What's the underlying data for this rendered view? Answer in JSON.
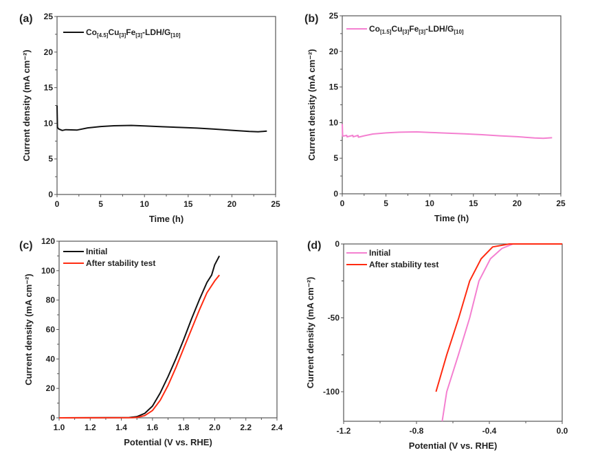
{
  "chart_data": [
    {
      "panel_label": "(a)",
      "type": "line",
      "xlabel": "Time (h)",
      "ylabel": "Current density (mA cm⁻²)",
      "xlim": [
        0,
        25
      ],
      "ylim": [
        0,
        25
      ],
      "xticks": [
        0,
        5,
        10,
        15,
        20,
        25
      ],
      "yticks": [
        0,
        5,
        10,
        15,
        20,
        25
      ],
      "xtick_labels": [
        "0",
        "5",
        "10",
        "15",
        "20",
        "25"
      ],
      "ytick_labels": [
        "0",
        "5",
        "10",
        "15",
        "20",
        "25"
      ],
      "grid": false,
      "legend_position": "top-left",
      "series": [
        {
          "name": "Co[4.5]Cu[3]Fe[3]-LDH/G[10]",
          "color": "#111111",
          "x": [
            0,
            0.05,
            0.2,
            0.6,
            1.0,
            2.3,
            3.5,
            5,
            6.5,
            8.5,
            10,
            12,
            14,
            16,
            18,
            20,
            22,
            23,
            24
          ],
          "y": [
            12.5,
            9.4,
            9.2,
            9.0,
            9.1,
            9.05,
            9.35,
            9.55,
            9.65,
            9.7,
            9.62,
            9.52,
            9.42,
            9.32,
            9.18,
            9.02,
            8.85,
            8.8,
            8.9
          ]
        }
      ]
    },
    {
      "panel_label": "(b)",
      "type": "line",
      "xlabel": "Time (h)",
      "ylabel": "Current density (mA cm⁻²)",
      "xlim": [
        0,
        25
      ],
      "ylim": [
        0,
        25
      ],
      "xticks": [
        0,
        5,
        10,
        15,
        20,
        25
      ],
      "yticks": [
        0,
        5,
        10,
        15,
        20,
        25
      ],
      "xtick_labels": [
        "0",
        "5",
        "10",
        "15",
        "20",
        "25"
      ],
      "ytick_labels": [
        "0",
        "5",
        "10",
        "15",
        "20",
        "25"
      ],
      "grid": false,
      "legend_position": "top-left",
      "series": [
        {
          "name": "Co[1.5]Cu[3]Fe[3]-LDH/G[10]",
          "color": "#f47fd0",
          "x": [
            0,
            0.05,
            0.5,
            0.55,
            1.2,
            1.25,
            1.8,
            1.85,
            2.5,
            3.5,
            5,
            6.5,
            8.5,
            10,
            12,
            14,
            16,
            18,
            20,
            22,
            23,
            24
          ],
          "y": [
            9.8,
            8.1,
            8.2,
            8.0,
            8.2,
            8.0,
            8.2,
            7.95,
            8.15,
            8.4,
            8.55,
            8.65,
            8.7,
            8.62,
            8.52,
            8.42,
            8.3,
            8.15,
            8.02,
            7.85,
            7.8,
            7.88
          ]
        }
      ]
    },
    {
      "panel_label": "(c)",
      "type": "line",
      "xlabel": "Potential (V vs. RHE)",
      "ylabel": "Current density (mA cm⁻²)",
      "xlim": [
        1.0,
        2.4
      ],
      "ylim": [
        0,
        120
      ],
      "xticks": [
        1.0,
        1.2,
        1.4,
        1.6,
        1.8,
        2.0,
        2.2,
        2.4
      ],
      "yticks": [
        0,
        20,
        40,
        60,
        80,
        100,
        120
      ],
      "xtick_labels": [
        "1.0",
        "1.2",
        "1.4",
        "1.6",
        "1.8",
        "2.0",
        "2.2",
        "2.4"
      ],
      "ytick_labels": [
        "0",
        "20",
        "40",
        "60",
        "80",
        "100",
        "120"
      ],
      "grid": false,
      "legend_position": "top-left",
      "series": [
        {
          "name": "Initial",
          "color": "#111111",
          "x": [
            1.0,
            1.45,
            1.5,
            1.55,
            1.6,
            1.65,
            1.7,
            1.75,
            1.8,
            1.85,
            1.9,
            1.95,
            1.98,
            2.0,
            2.03
          ],
          "y": [
            0,
            0.2,
            0.8,
            3,
            8,
            17,
            28,
            40,
            53,
            67,
            80,
            92,
            97,
            104,
            110
          ]
        },
        {
          "name": "After stability test",
          "color": "#ff2a10",
          "x": [
            1.0,
            1.47,
            1.5,
            1.55,
            1.6,
            1.65,
            1.7,
            1.75,
            1.8,
            1.85,
            1.9,
            1.95,
            2.0,
            2.03
          ],
          "y": [
            0,
            0.1,
            0.3,
            1.5,
            5,
            12,
            22,
            34,
            47,
            60,
            73,
            85,
            93,
            97
          ]
        }
      ]
    },
    {
      "panel_label": "(d)",
      "type": "line",
      "xlabel": "Potential (V vs. RHE)",
      "ylabel": "Current density (mA cm⁻²)",
      "xlim": [
        -1.2,
        0.0
      ],
      "ylim": [
        -120,
        0
      ],
      "xticks": [
        -1.2,
        -0.8,
        -0.4,
        0.0
      ],
      "yticks": [
        -100,
        -50,
        0
      ],
      "xtick_labels": [
        "-1.2",
        "-0.8",
        "-0.4",
        "0.0"
      ],
      "ytick_labels": [
        "-100",
        "-50",
        "0"
      ],
      "grid": false,
      "legend_position": "top-left",
      "series": [
        {
          "name": "Initial",
          "color": "#f47fd0",
          "x": [
            -0.659,
            -0.634,
            -0.57,
            -0.508,
            -0.457,
            -0.394,
            -0.331,
            -0.27,
            0.0
          ],
          "y": [
            -120,
            -100,
            -75,
            -50,
            -25,
            -10,
            -3,
            0,
            0
          ]
        },
        {
          "name": "After stability test",
          "color": "#ff2a10",
          "x": [
            -0.693,
            -0.634,
            -0.568,
            -0.508,
            -0.445,
            -0.382,
            -0.29,
            0.0
          ],
          "y": [
            -100,
            -75,
            -50,
            -25,
            -10,
            -2,
            0,
            0
          ]
        }
      ]
    }
  ]
}
